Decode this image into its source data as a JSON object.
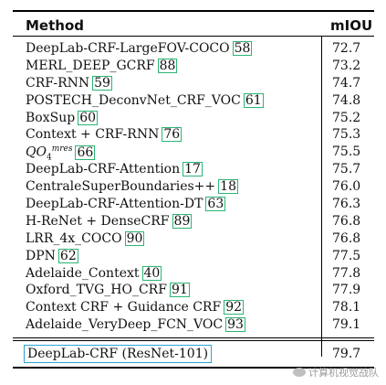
{
  "header": {
    "method": "Method",
    "miou": "mIOU"
  },
  "rows": [
    {
      "name": "DeepLab-CRF-LargeFOV-COCO",
      "ref": "58",
      "miou": "72.7"
    },
    {
      "name": "MERL_DEEP_GCRF",
      "ref": "88",
      "miou": "73.2"
    },
    {
      "name": "CRF-RNN",
      "ref": "59",
      "miou": "74.7"
    },
    {
      "name": "POSTECH_DeconvNet_CRF_VOC",
      "ref": "61",
      "miou": "74.8"
    },
    {
      "name": "BoxSup",
      "ref": "60",
      "miou": "75.2"
    },
    {
      "name": "Context + CRF-RNN",
      "ref": "76",
      "miou": "75.3"
    },
    {
      "name": "QO",
      "ref": "66",
      "miou": "75.5"
    },
    {
      "name": "DeepLab-CRF-Attention",
      "ref": "17",
      "miou": "75.7"
    },
    {
      "name": "CentraleSuperBoundaries++",
      "ref": "18",
      "miou": "76.0"
    },
    {
      "name": "DeepLab-CRF-Attention-DT",
      "ref": "63",
      "miou": "76.3"
    },
    {
      "name": "H-ReNet + DenseCRF",
      "ref": "89",
      "miou": "76.8"
    },
    {
      "name": "LRR_4x_COCO",
      "ref": "90",
      "miou": "76.8"
    },
    {
      "name": "DPN",
      "ref": "62",
      "miou": "77.5"
    },
    {
      "name": "Adelaide_Context",
      "ref": "40",
      "miou": "77.8"
    },
    {
      "name": "Oxford_TVG_HO_CRF",
      "ref": "91",
      "miou": "77.9"
    },
    {
      "name": "Context CRF + Guidance CRF",
      "ref": "92",
      "miou": "78.1"
    },
    {
      "name": "Adelaide_VeryDeep_FCN_VOC",
      "ref": "93",
      "miou": "79.1"
    }
  ],
  "qo_sup": "mres",
  "qo_sub": "4",
  "final": {
    "name": "DeepLab-CRF (ResNet-101)",
    "miou": "79.7"
  },
  "watermark": "计算机视觉战队"
}
